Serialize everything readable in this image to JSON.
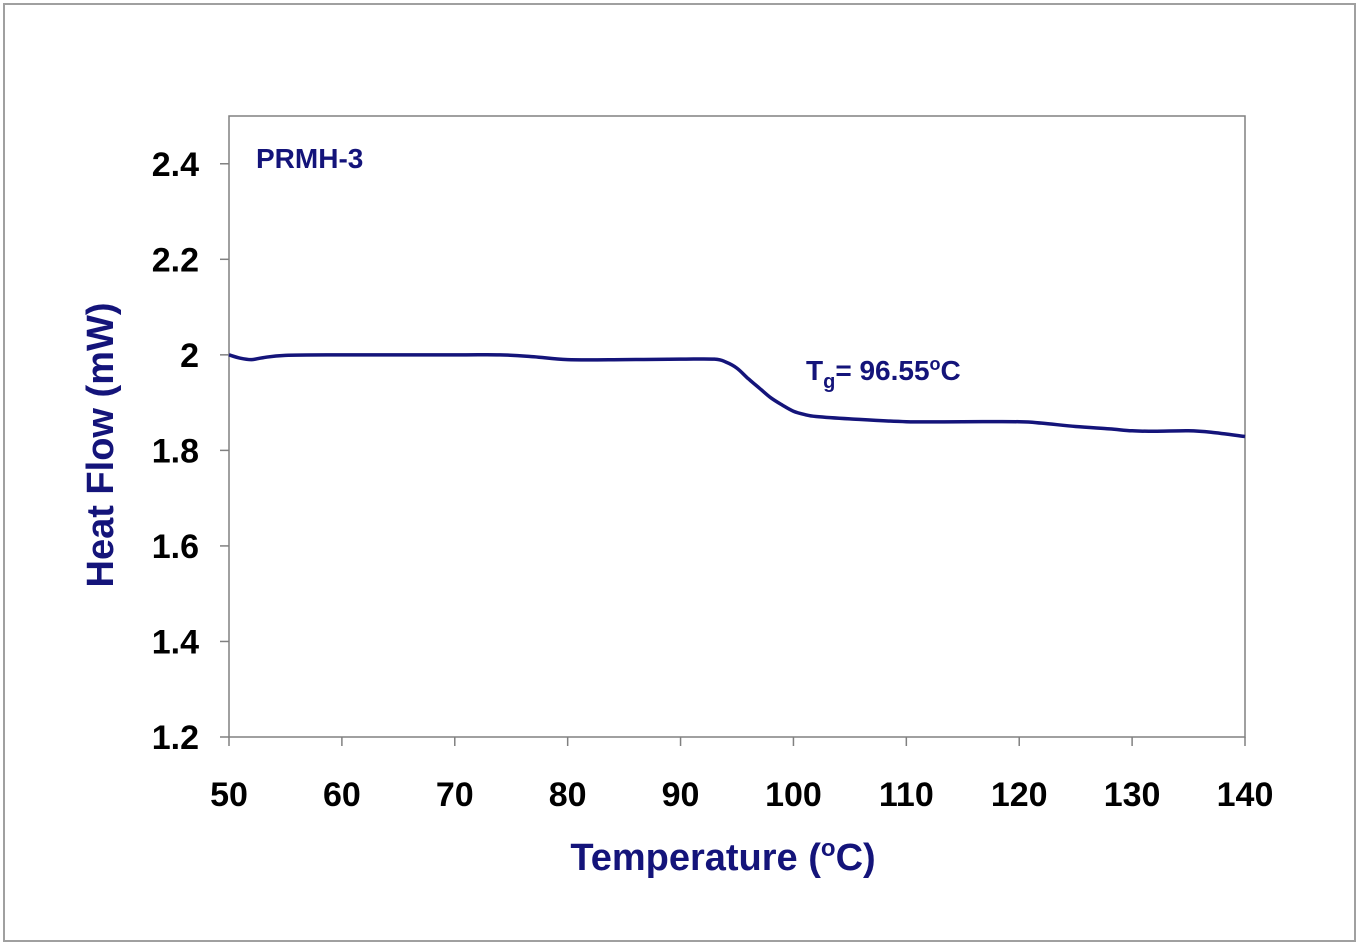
{
  "chart_data": {
    "type": "line",
    "title": "",
    "xlabel": "Temperature (oC)",
    "xlabel_main": "Temperature (",
    "xlabel_sup": "o",
    "xlabel_end": "C)",
    "ylabel": "Heat Flow (mW)",
    "xlim": [
      50,
      140
    ],
    "ylim": [
      1.2,
      2.5
    ],
    "xticks": [
      50,
      60,
      70,
      80,
      90,
      100,
      110,
      120,
      130,
      140
    ],
    "yticks": [
      1.2,
      1.4,
      1.6,
      1.8,
      2,
      2.2,
      2.4
    ],
    "ytick_labels": [
      "1.2",
      "1.4",
      "1.6",
      "1.8",
      "2",
      "2.2",
      "2.4"
    ],
    "grid": false,
    "series": [
      {
        "name": "PRMH-3",
        "color": "#14147a",
        "x": [
          50,
          51,
          52,
          53,
          55,
          60,
          70,
          74,
          77,
          80,
          85,
          90,
          93,
          94,
          95,
          96,
          97,
          98,
          99,
          100,
          101,
          102,
          105,
          110,
          115,
          120,
          122,
          125,
          128,
          130,
          132,
          135,
          137,
          140
        ],
        "y": [
          2.0,
          1.993,
          1.99,
          1.994,
          1.999,
          2.0,
          2.0,
          2.0,
          1.996,
          1.99,
          1.99,
          1.991,
          1.991,
          1.985,
          1.972,
          1.95,
          1.93,
          1.91,
          1.895,
          1.882,
          1.875,
          1.871,
          1.866,
          1.86,
          1.86,
          1.86,
          1.857,
          1.85,
          1.845,
          1.841,
          1.84,
          1.841,
          1.838,
          1.829
        ]
      }
    ],
    "annotations": {
      "series_label": "PRMH-3",
      "tg_prefix": "T",
      "tg_sub": "g",
      "tg_value": "= 96.55",
      "tg_sup": "o",
      "tg_unit": "C"
    }
  }
}
